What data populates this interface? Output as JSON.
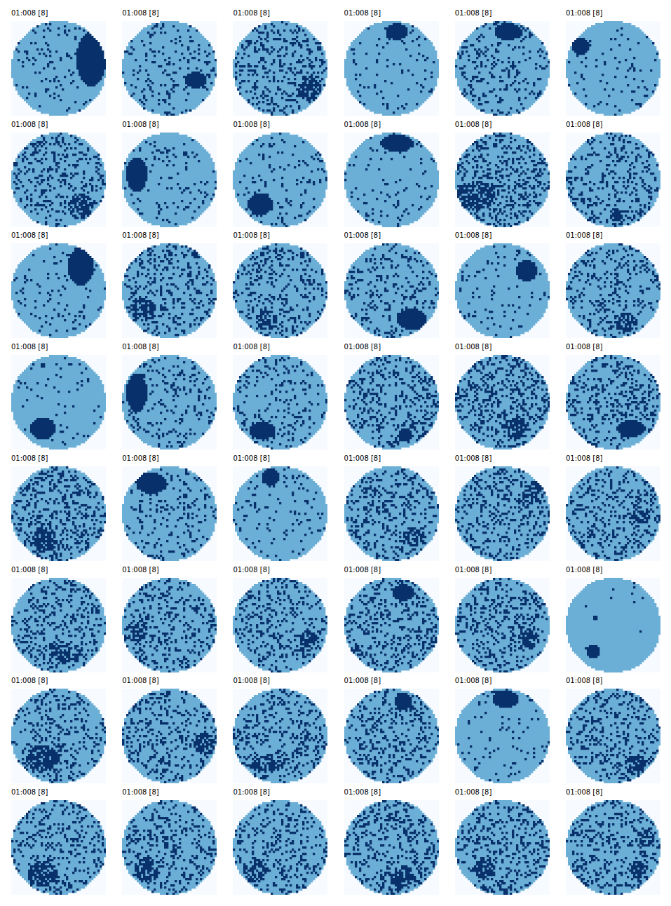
{
  "chart_data": {
    "type": "heatmap",
    "tick_labels": false,
    "xlim": [
      0,
      45
    ],
    "ylim": [
      0,
      45
    ],
    "colors": [
      "#f7fbff",
      "#6baed6",
      "#08306b"
    ],
    "panels": [
      {
        "title": "01:008 [8]",
        "density": 0.08,
        "clusters": [
          {
            "x": 38,
            "y": 18,
            "rx": 7,
            "ry": 13,
            "fill": 1
          }
        ]
      },
      {
        "title": "01:008 [8]",
        "density": 0.12,
        "clusters": [
          {
            "x": 35,
            "y": 28,
            "rx": 5,
            "ry": 4,
            "fill": 1
          }
        ]
      },
      {
        "title": "01:008 [8]",
        "density": 0.2,
        "clusters": [
          {
            "x": 36,
            "y": 32,
            "rx": 6,
            "ry": 6,
            "fill": 0.6
          }
        ]
      },
      {
        "title": "01:008 [8]",
        "density": 0.06,
        "clusters": [
          {
            "x": 25,
            "y": 5,
            "rx": 5,
            "ry": 4,
            "fill": 1
          }
        ]
      },
      {
        "title": "01:008 [8]",
        "density": 0.15,
        "clusters": [
          {
            "x": 25,
            "y": 5,
            "rx": 6,
            "ry": 4,
            "fill": 1
          }
        ]
      },
      {
        "title": "01:008 [8]",
        "density": 0.06,
        "clusters": [
          {
            "x": 7,
            "y": 12,
            "rx": 4,
            "ry": 4,
            "fill": 1
          }
        ]
      },
      {
        "title": "01:008 [8]",
        "density": 0.2,
        "clusters": [
          {
            "x": 33,
            "y": 35,
            "rx": 6,
            "ry": 6,
            "fill": 0.6
          }
        ]
      },
      {
        "title": "01:008 [8]",
        "density": 0.07,
        "clusters": [
          {
            "x": 7,
            "y": 20,
            "rx": 5,
            "ry": 8,
            "fill": 1
          },
          {
            "x": 30,
            "y": 10,
            "rx": 1.5,
            "ry": 1,
            "fill": 1
          }
        ]
      },
      {
        "title": "01:008 [8]",
        "density": 0.08,
        "clusters": [
          {
            "x": 13,
            "y": 34,
            "rx": 6,
            "ry": 5,
            "fill": 1
          }
        ]
      },
      {
        "title": "01:008 [8]",
        "density": 0.05,
        "clusters": [
          {
            "x": 25,
            "y": 5,
            "rx": 8,
            "ry": 4,
            "fill": 1
          }
        ]
      },
      {
        "title": "01:008 [8]",
        "density": 0.25,
        "clusters": [
          {
            "x": 10,
            "y": 30,
            "rx": 9,
            "ry": 7,
            "fill": 0.6
          }
        ]
      },
      {
        "title": "01:008 [8]",
        "density": 0.2,
        "clusters": [
          {
            "x": 24,
            "y": 39,
            "rx": 3,
            "ry": 3,
            "fill": 0.7
          }
        ]
      },
      {
        "title": "01:008 [8]",
        "density": 0.06,
        "clusters": [
          {
            "x": 33,
            "y": 11,
            "rx": 6,
            "ry": 9,
            "fill": 1
          }
        ]
      },
      {
        "title": "01:008 [8]",
        "density": 0.2,
        "clusters": [
          {
            "x": 10,
            "y": 31,
            "rx": 6,
            "ry": 6,
            "fill": 0.6
          }
        ]
      },
      {
        "title": "01:008 [8]",
        "density": 0.2,
        "clusters": [
          {
            "x": 16,
            "y": 36,
            "rx": 5,
            "ry": 5,
            "fill": 0.6
          }
        ]
      },
      {
        "title": "01:008 [8]",
        "density": 0.15,
        "clusters": [
          {
            "x": 32,
            "y": 36,
            "rx": 7,
            "ry": 5,
            "fill": 1
          }
        ]
      },
      {
        "title": "01:008 [8]",
        "density": 0.06,
        "clusters": [
          {
            "x": 34,
            "y": 13,
            "rx": 5,
            "ry": 5,
            "fill": 1
          }
        ]
      },
      {
        "title": "01:008 [8]",
        "density": 0.2,
        "clusters": [
          {
            "x": 29,
            "y": 38,
            "rx": 5,
            "ry": 5,
            "fill": 0.6
          }
        ]
      },
      {
        "title": "01:008 [8]",
        "density": 0.04,
        "clusters": [
          {
            "x": 15,
            "y": 35,
            "rx": 6,
            "ry": 5,
            "fill": 1
          },
          {
            "x": 15,
            "y": 5,
            "rx": 1.5,
            "ry": 1.5,
            "fill": 1
          }
        ]
      },
      {
        "title": "01:008 [8]",
        "density": 0.12,
        "clusters": [
          {
            "x": 7,
            "y": 18,
            "rx": 5,
            "ry": 9,
            "fill": 1
          }
        ]
      },
      {
        "title": "01:008 [8]",
        "density": 0.12,
        "clusters": [
          {
            "x": 14,
            "y": 36,
            "rx": 6,
            "ry": 4,
            "fill": 1
          }
        ]
      },
      {
        "title": "01:008 [8]",
        "density": 0.2,
        "clusters": [
          {
            "x": 29,
            "y": 38,
            "rx": 3,
            "ry": 3,
            "fill": 1
          }
        ]
      },
      {
        "title": "01:008 [8]",
        "density": 0.25,
        "clusters": [
          {
            "x": 29,
            "y": 35,
            "rx": 5,
            "ry": 5,
            "fill": 0.6
          }
        ]
      },
      {
        "title": "01:008 [8]",
        "density": 0.2,
        "clusters": [
          {
            "x": 31,
            "y": 35,
            "rx": 7,
            "ry": 4,
            "fill": 1
          }
        ]
      },
      {
        "title": "01:008 [8]",
        "density": 0.25,
        "clusters": [
          {
            "x": 16,
            "y": 35,
            "rx": 6,
            "ry": 6,
            "fill": 0.6
          }
        ]
      },
      {
        "title": "01:008 [8]",
        "density": 0.12,
        "clusters": [
          {
            "x": 14,
            "y": 8,
            "rx": 7,
            "ry": 5,
            "fill": 1
          }
        ]
      },
      {
        "title": "01:008 [8]",
        "density": 0.06,
        "clusters": [
          {
            "x": 18,
            "y": 5,
            "rx": 4,
            "ry": 4,
            "fill": 1
          }
        ]
      },
      {
        "title": "01:008 [8]",
        "density": 0.2,
        "clusters": [
          {
            "x": 33,
            "y": 33,
            "rx": 5,
            "ry": 5,
            "fill": 0.5
          }
        ]
      },
      {
        "title": "01:008 [8]",
        "density": 0.2,
        "clusters": [
          {
            "x": 37,
            "y": 13,
            "rx": 5,
            "ry": 5,
            "fill": 0.6
          }
        ]
      },
      {
        "title": "01:008 [8]",
        "density": 0.2,
        "clusters": [
          {
            "x": 36,
            "y": 23,
            "rx": 4,
            "ry": 4,
            "fill": 0.6
          }
        ]
      },
      {
        "title": "01:008 [8]",
        "density": 0.2,
        "clusters": [
          {
            "x": 26,
            "y": 35,
            "rx": 8,
            "ry": 5,
            "fill": 0.6
          }
        ]
      },
      {
        "title": "01:008 [8]",
        "density": 0.2,
        "clusters": [
          {
            "x": 7,
            "y": 25,
            "rx": 5,
            "ry": 5,
            "fill": 0.6
          }
        ]
      },
      {
        "title": "01:008 [8]",
        "density": 0.2,
        "clusters": [
          {
            "x": 36,
            "y": 29,
            "rx": 4,
            "ry": 4,
            "fill": 0.6
          }
        ]
      },
      {
        "title": "01:008 [8]",
        "density": 0.2,
        "clusters": [
          {
            "x": 28,
            "y": 7,
            "rx": 5,
            "ry": 4,
            "fill": 1
          }
        ]
      },
      {
        "title": "01:008 [8]",
        "density": 0.22,
        "clusters": [
          {
            "x": 35,
            "y": 29,
            "rx": 5,
            "ry": 5,
            "fill": 0.6
          }
        ]
      },
      {
        "title": "01:008 [8]",
        "density": 0.01,
        "clusters": [
          {
            "x": 13,
            "y": 35,
            "rx": 3,
            "ry": 3,
            "fill": 1
          },
          {
            "x": 14,
            "y": 19,
            "rx": 1.5,
            "ry": 1.5,
            "fill": 1
          }
        ]
      },
      {
        "title": "01:008 [8]",
        "density": 0.2,
        "clusters": [
          {
            "x": 15,
            "y": 33,
            "rx": 8,
            "ry": 6,
            "fill": 0.7
          }
        ]
      },
      {
        "title": "01:008 [8]",
        "density": 0.2,
        "clusters": [
          {
            "x": 39,
            "y": 26,
            "rx": 5,
            "ry": 5,
            "fill": 0.6
          }
        ]
      },
      {
        "title": "01:008 [8]",
        "density": 0.22,
        "clusters": [
          {
            "x": 16,
            "y": 36,
            "rx": 8,
            "ry": 4,
            "fill": 0.6
          }
        ]
      },
      {
        "title": "01:008 [8]",
        "density": 0.2,
        "clusters": [
          {
            "x": 28,
            "y": 6,
            "rx": 4,
            "ry": 4,
            "fill": 1
          }
        ]
      },
      {
        "title": "01:008 [8]",
        "density": 0.05,
        "clusters": [
          {
            "x": 24,
            "y": 5,
            "rx": 6,
            "ry": 4,
            "fill": 1
          }
        ]
      },
      {
        "title": "01:008 [8]",
        "density": 0.2,
        "clusters": [
          {
            "x": 33,
            "y": 36,
            "rx": 5,
            "ry": 5,
            "fill": 0.6
          }
        ]
      },
      {
        "title": "01:008 [8]",
        "density": 0.2,
        "clusters": [
          {
            "x": 15,
            "y": 35,
            "rx": 7,
            "ry": 6,
            "fill": 0.65
          }
        ]
      },
      {
        "title": "01:008 [8]",
        "density": 0.2,
        "clusters": [
          {
            "x": 12,
            "y": 33,
            "rx": 6,
            "ry": 6,
            "fill": 0.6
          }
        ]
      },
      {
        "title": "01:008 [8]",
        "density": 0.2,
        "clusters": [
          {
            "x": 11,
            "y": 33,
            "rx": 6,
            "ry": 6,
            "fill": 0.5
          }
        ]
      },
      {
        "title": "01:008 [8]",
        "density": 0.22,
        "clusters": [
          {
            "x": 28,
            "y": 36,
            "rx": 5,
            "ry": 5,
            "fill": 0.7
          }
        ]
      },
      {
        "title": "01:008 [8]",
        "density": 0.2,
        "clusters": [
          {
            "x": 14,
            "y": 33,
            "rx": 5,
            "ry": 5,
            "fill": 0.7
          }
        ]
      },
      {
        "title": "01:008 [8]",
        "density": 0.22,
        "clusters": [
          {
            "x": 38,
            "y": 18,
            "rx": 4,
            "ry": 4,
            "fill": 0.6
          },
          {
            "x": 34,
            "y": 33,
            "rx": 4,
            "ry": 4,
            "fill": 0.6
          }
        ]
      }
    ]
  }
}
